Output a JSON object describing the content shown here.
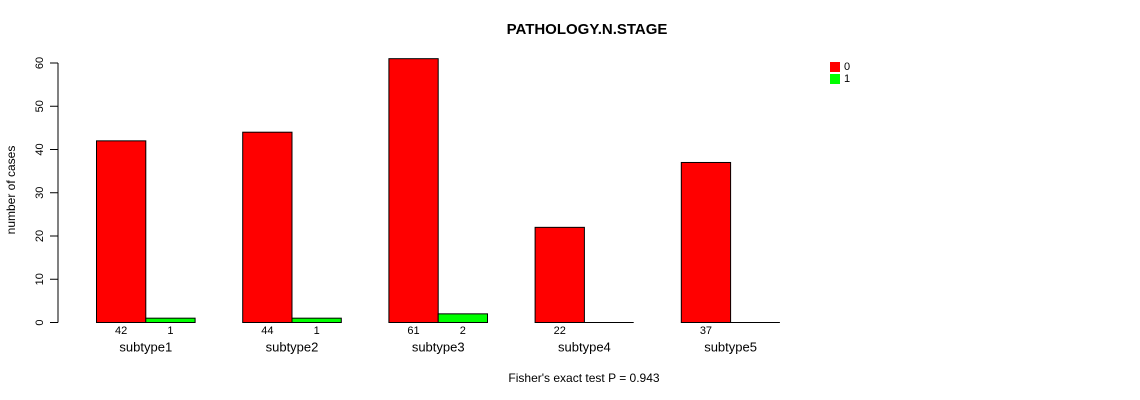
{
  "chart_data": {
    "type": "bar",
    "title": "PATHOLOGY.N.STAGE",
    "xlabel": "",
    "ylabel": "number of cases",
    "annotation": "Fisher's exact test P = 0.943",
    "categories": [
      "subtype1",
      "subtype2",
      "subtype3",
      "subtype4",
      "subtype5"
    ],
    "series": [
      {
        "name": "0",
        "color": "#FF0000",
        "values": [
          42,
          44,
          61,
          22,
          37
        ]
      },
      {
        "name": "1",
        "color": "#00FF00",
        "values": [
          1,
          1,
          2,
          0,
          0
        ]
      }
    ],
    "yticks": [
      0,
      10,
      20,
      30,
      40,
      50,
      60
    ],
    "ylim": [
      0,
      60
    ],
    "grid": false,
    "bar_value_labels": true,
    "legend_position": "right",
    "axis_color": "#000000",
    "background_color": "#FFFFFF"
  }
}
